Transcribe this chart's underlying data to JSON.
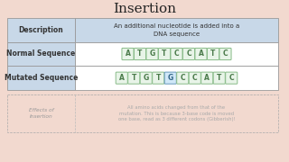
{
  "title": "Insertion",
  "bg_color": "#f2d9cf",
  "table_header_bg": "#c8d8e8",
  "table_row_bg": "#ffffff",
  "table_border_color": "#999999",
  "cell_bg": "#e8f4e8",
  "cell_border": "#88bb88",
  "cell_text_color": "#4a7a4a",
  "inserted_cell_bg": "#d0e8f8",
  "inserted_cell_border": "#6699bb",
  "inserted_cell_text": "#336688",
  "header_col_label": "Description",
  "header_col_desc": "An additional nucleotide is added into a\nDNA sequence",
  "row1_label": "Normal Sequence",
  "row1_seq": [
    "A",
    "T",
    "G",
    "T",
    "C",
    "C",
    "A",
    "T",
    "C"
  ],
  "row1_inserted": [],
  "row2_label": "Mutated Sequence",
  "row2_seq": [
    "A",
    "T",
    "G",
    "T",
    "G",
    "C",
    "C",
    "A",
    "T",
    "C"
  ],
  "row2_inserted": [
    4
  ],
  "title_fontsize": 11,
  "label_fontsize": 5.5,
  "desc_fontsize": 5.0,
  "seq_fontsize": 5.5,
  "bottom_left_text": "Effects of\nInsertion",
  "bottom_right_text": "All amino acids changed from that of the\nmutation. This is because 3-base code is moved\none base, read as 3 different codons (Gibberish)!"
}
